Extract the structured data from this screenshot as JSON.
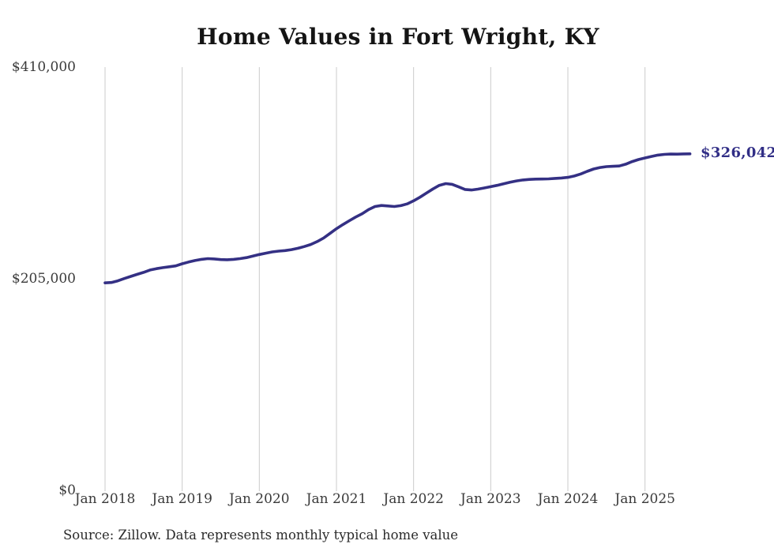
{
  "title": "Home Values in Fort Wright, KY",
  "end_label": "$326,042",
  "source": "Source: Zillow. Data represents monthly typical home value",
  "colors": {
    "line": "#343084",
    "end_label": "#312e86",
    "gridline": "#cbcbcb",
    "axis_text": "#3a3a3a",
    "title_text": "#141414",
    "background": "#ffffff"
  },
  "chart_data": {
    "type": "line",
    "title": "Home Values in Fort Wright, KY",
    "series_name": "Typical home value (monthly)",
    "xlabel": "",
    "ylabel": "",
    "ylim": [
      0,
      410000
    ],
    "grid": "vertical-only",
    "legend": "none",
    "end_annotation": "$326,042",
    "y_ticks": [
      {
        "label": "$410,000",
        "value": 410000
      },
      {
        "label": "$205,000",
        "value": 205000
      },
      {
        "label": "$0",
        "value": 0
      }
    ],
    "x_tick_labels": [
      "Jan 2018",
      "Jan 2019",
      "Jan 2020",
      "Jan 2021",
      "Jan 2022",
      "Jan 2023",
      "Jan 2024",
      "Jan 2025"
    ],
    "x_tick_month_indices": [
      0,
      12,
      24,
      36,
      48,
      60,
      72,
      84
    ],
    "x": [
      "2018-01",
      "2018-02",
      "2018-03",
      "2018-04",
      "2018-05",
      "2018-06",
      "2018-07",
      "2018-08",
      "2018-09",
      "2018-10",
      "2018-11",
      "2018-12",
      "2019-01",
      "2019-02",
      "2019-03",
      "2019-04",
      "2019-05",
      "2019-06",
      "2019-07",
      "2019-08",
      "2019-09",
      "2019-10",
      "2019-11",
      "2019-12",
      "2020-01",
      "2020-02",
      "2020-03",
      "2020-04",
      "2020-05",
      "2020-06",
      "2020-07",
      "2020-08",
      "2020-09",
      "2020-10",
      "2020-11",
      "2020-12",
      "2021-01",
      "2021-02",
      "2021-03",
      "2021-04",
      "2021-05",
      "2021-06",
      "2021-07",
      "2021-08",
      "2021-09",
      "2021-10",
      "2021-11",
      "2021-12",
      "2022-01",
      "2022-02",
      "2022-03",
      "2022-04",
      "2022-05",
      "2022-06",
      "2022-07",
      "2022-08",
      "2022-09",
      "2022-10",
      "2022-11",
      "2022-12",
      "2023-01",
      "2023-02",
      "2023-03",
      "2023-04",
      "2023-05",
      "2023-06",
      "2023-07",
      "2023-08",
      "2023-09",
      "2023-10",
      "2023-11",
      "2023-12",
      "2024-01",
      "2024-02",
      "2024-03",
      "2024-04",
      "2024-05",
      "2024-06",
      "2024-07",
      "2024-08",
      "2024-09",
      "2024-10",
      "2024-11",
      "2024-12",
      "2025-01",
      "2025-02",
      "2025-03",
      "2025-04",
      "2025-05",
      "2025-06",
      "2025-07",
      "2025-08"
    ],
    "values": [
      201000,
      201400,
      203000,
      205200,
      207300,
      209300,
      211200,
      213500,
      214800,
      215800,
      216600,
      217500,
      219500,
      221200,
      222700,
      223800,
      224500,
      224200,
      223600,
      223400,
      223800,
      224500,
      225500,
      227000,
      228500,
      229800,
      231000,
      231800,
      232300,
      233200,
      234500,
      236200,
      238200,
      241000,
      244500,
      249000,
      253500,
      257500,
      261200,
      264800,
      268000,
      272000,
      275000,
      276000,
      275500,
      275000,
      275800,
      277500,
      280500,
      284000,
      288000,
      292000,
      295500,
      297200,
      296500,
      294000,
      291500,
      291000,
      291800,
      293000,
      294200,
      295500,
      297000,
      298500,
      299800,
      300700,
      301200,
      301500,
      301600,
      301800,
      302200,
      302600,
      303200,
      304500,
      306500,
      309000,
      311300,
      312800,
      313600,
      313900,
      314200,
      316000,
      318500,
      320500,
      322000,
      323500,
      324800,
      325500,
      325800,
      325700,
      325900,
      326042
    ]
  }
}
